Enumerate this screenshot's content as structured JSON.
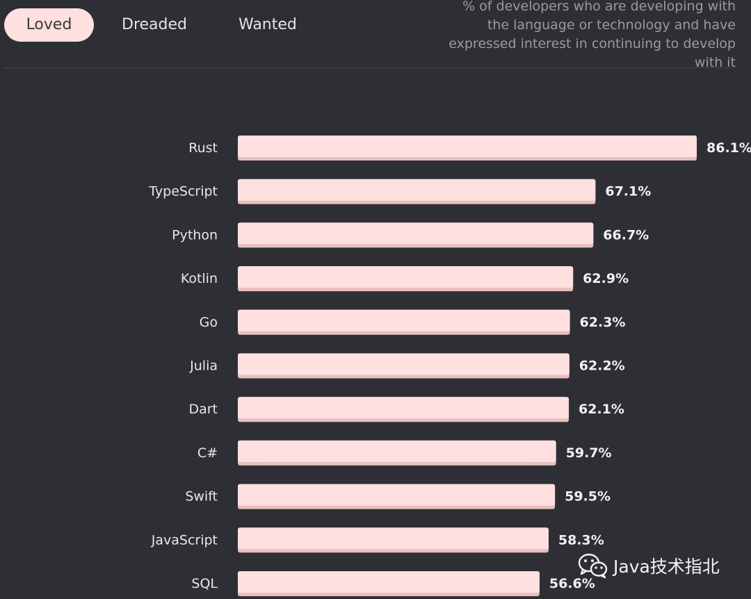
{
  "tabs": [
    {
      "label": "Loved",
      "active": true
    },
    {
      "label": "Dreaded",
      "active": false
    },
    {
      "label": "Wanted",
      "active": false
    }
  ],
  "description": "% of developers who are developing with the language or technology and have expressed interest in continuing to develop with it",
  "watermark": "Java技术指北",
  "colors": {
    "background": "#2d2f34",
    "bar": "#fde0df",
    "bar_shadow": "#e9bebd",
    "active_tab": "#fde0df"
  },
  "chart_data": {
    "type": "bar",
    "orientation": "horizontal",
    "categories": [
      "Rust",
      "TypeScript",
      "Python",
      "Kotlin",
      "Go",
      "Julia",
      "Dart",
      "C#",
      "Swift",
      "JavaScript",
      "SQL"
    ],
    "values": [
      86.1,
      67.1,
      66.7,
      62.9,
      62.3,
      62.2,
      62.1,
      59.7,
      59.5,
      58.3,
      56.6
    ],
    "value_labels": [
      "86.1%",
      "67.1%",
      "66.7%",
      "62.9%",
      "62.3%",
      "62.2%",
      "62.1%",
      "59.7%",
      "59.5%",
      "58.3%",
      "56.6%"
    ],
    "unit": "%",
    "title": "",
    "xlabel": "",
    "ylabel": "",
    "xlim": [
      0,
      86.1
    ],
    "grid": false
  }
}
